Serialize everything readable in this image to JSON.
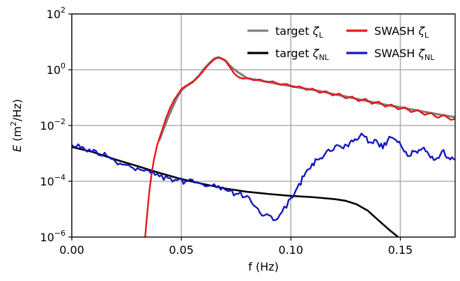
{
  "chart_data": {
    "type": "line",
    "xlabel": "f (Hz)",
    "ylabel": {
      "symbol": "E",
      "unit_open": " (m",
      "unit_sup": "2",
      "unit_close": "/Hz)"
    },
    "xlim": [
      0.0,
      0.175
    ],
    "ylim": [
      1e-06,
      100
    ],
    "yscale": "log",
    "grid": true,
    "x_ticks": [
      {
        "value": 0.0,
        "label": "0.00"
      },
      {
        "value": 0.05,
        "label": "0.05"
      },
      {
        "value": 0.1,
        "label": "0.10"
      },
      {
        "value": 0.15,
        "label": "0.15"
      }
    ],
    "y_ticks": [
      {
        "value": 1e-06,
        "base": "10",
        "exp": "−6"
      },
      {
        "value": 0.0001,
        "base": "10",
        "exp": "−4"
      },
      {
        "value": 0.01,
        "base": "10",
        "exp": "−2"
      },
      {
        "value": 1,
        "base": "10",
        "exp": "0"
      },
      {
        "value": 100,
        "base": "10",
        "exp": "2"
      }
    ],
    "legend_position": "top-right",
    "series": [
      {
        "key": "target_L",
        "legend": {
          "prefix": "target ",
          "symbol": "ζ",
          "sub": "L"
        },
        "color": "#808080",
        "width": 3.2,
        "x": [
          0.04,
          0.044,
          0.048,
          0.05,
          0.052,
          0.055,
          0.058,
          0.06,
          0.063,
          0.065,
          0.067,
          0.07,
          0.073,
          0.076,
          0.08,
          0.085,
          0.09,
          0.095,
          0.1,
          0.105,
          0.11,
          0.115,
          0.12,
          0.125,
          0.13,
          0.135,
          0.14,
          0.145,
          0.15,
          0.155,
          0.16,
          0.165,
          0.17,
          0.175
        ],
        "y": [
          0.003,
          0.02,
          0.1,
          0.18,
          0.25,
          0.35,
          0.6,
          1.0,
          1.8,
          2.5,
          2.8,
          2.2,
          1.2,
          0.8,
          0.5,
          0.42,
          0.36,
          0.3,
          0.26,
          0.22,
          0.19,
          0.16,
          0.13,
          0.11,
          0.09,
          0.075,
          0.062,
          0.052,
          0.045,
          0.038,
          0.032,
          0.027,
          0.023,
          0.02
        ]
      },
      {
        "key": "target_NL",
        "legend": {
          "prefix": "target ",
          "symbol": "ζ",
          "sub": "NL"
        },
        "color": "#000000",
        "width": 2.6,
        "x": [
          0.0,
          0.01,
          0.02,
          0.03,
          0.04,
          0.05,
          0.06,
          0.07,
          0.08,
          0.09,
          0.1,
          0.11,
          0.12,
          0.125,
          0.13,
          0.135,
          0.14,
          0.145,
          0.149
        ],
        "y": [
          0.0017,
          0.0011,
          0.0006,
          0.00035,
          0.0002,
          0.00012,
          8e-05,
          5.5e-05,
          4.2e-05,
          3.5e-05,
          3e-05,
          2.7e-05,
          2.3e-05,
          2e-05,
          1.5e-05,
          9e-06,
          4e-06,
          1.8e-06,
          1e-06
        ]
      },
      {
        "key": "swash_L",
        "legend": {
          "prefix": "SWASH ",
          "symbol": "ζ",
          "sub": "L"
        },
        "color": "#e8181a",
        "width": 2.4,
        "x": [
          0.0335,
          0.0345,
          0.0355,
          0.0365,
          0.0375,
          0.039,
          0.041,
          0.043,
          0.045,
          0.047,
          0.049,
          0.05,
          0.052,
          0.054,
          0.056,
          0.058,
          0.06,
          0.062,
          0.064,
          0.066,
          0.067,
          0.068,
          0.07,
          0.072,
          0.074,
          0.076,
          0.078,
          0.08,
          0.083,
          0.086,
          0.089,
          0.092,
          0.095,
          0.098,
          0.101,
          0.104,
          0.107,
          0.11,
          0.113,
          0.116,
          0.119,
          0.122,
          0.125,
          0.128,
          0.131,
          0.134,
          0.137,
          0.14,
          0.143,
          0.146,
          0.149,
          0.152,
          0.155,
          0.158,
          0.161,
          0.164,
          0.167,
          0.17,
          0.173,
          0.175
        ],
        "y": [
          1e-06,
          8e-06,
          5e-05,
          0.0002,
          0.0006,
          0.002,
          0.006,
          0.018,
          0.045,
          0.09,
          0.15,
          0.2,
          0.26,
          0.33,
          0.42,
          0.58,
          0.9,
          1.4,
          2.0,
          2.6,
          2.7,
          2.6,
          2.1,
          1.3,
          0.75,
          0.55,
          0.48,
          0.5,
          0.42,
          0.44,
          0.36,
          0.38,
          0.29,
          0.31,
          0.24,
          0.25,
          0.19,
          0.21,
          0.15,
          0.17,
          0.12,
          0.14,
          0.095,
          0.11,
          0.075,
          0.09,
          0.06,
          0.072,
          0.048,
          0.056,
          0.038,
          0.045,
          0.03,
          0.036,
          0.024,
          0.028,
          0.019,
          0.024,
          0.016,
          0.017
        ]
      },
      {
        "key": "swash_NL",
        "legend": {
          "prefix": "SWASH ",
          "symbol": "ζ",
          "sub": "NL"
        },
        "color": "#1518c0",
        "width": 2.4,
        "x": [
          0.0,
          0.004,
          0.008,
          0.012,
          0.016,
          0.02,
          0.024,
          0.028,
          0.032,
          0.036,
          0.04,
          0.044,
          0.048,
          0.052,
          0.056,
          0.06,
          0.064,
          0.068,
          0.072,
          0.076,
          0.08,
          0.084,
          0.088,
          0.092,
          0.096,
          0.1,
          0.103,
          0.106,
          0.109,
          0.112,
          0.115,
          0.118,
          0.121,
          0.124,
          0.127,
          0.13,
          0.133,
          0.136,
          0.139,
          0.142,
          0.145,
          0.148,
          0.151,
          0.154,
          0.157,
          0.16,
          0.163,
          0.166,
          0.169,
          0.172,
          0.175
        ],
        "y": [
          0.002,
          0.0016,
          0.0014,
          0.0009,
          0.0008,
          0.0005,
          0.0004,
          0.0003,
          0.00025,
          0.0002,
          0.00015,
          0.00013,
          0.00011,
          0.0001,
          9e-05,
          7.5e-05,
          7e-05,
          5e-05,
          4.5e-05,
          3.5e-05,
          3e-05,
          1.2e-05,
          6e-06,
          4e-06,
          8e-06,
          2.5e-05,
          6e-05,
          0.00015,
          0.0003,
          0.0006,
          0.0008,
          0.0012,
          0.002,
          0.0015,
          0.0025,
          0.003,
          0.0045,
          0.0025,
          0.003,
          0.0015,
          0.004,
          0.003,
          0.0015,
          0.0008,
          0.0012,
          0.0015,
          0.0009,
          0.0006,
          0.0012,
          0.0007,
          0.0006
        ]
      }
    ]
  }
}
